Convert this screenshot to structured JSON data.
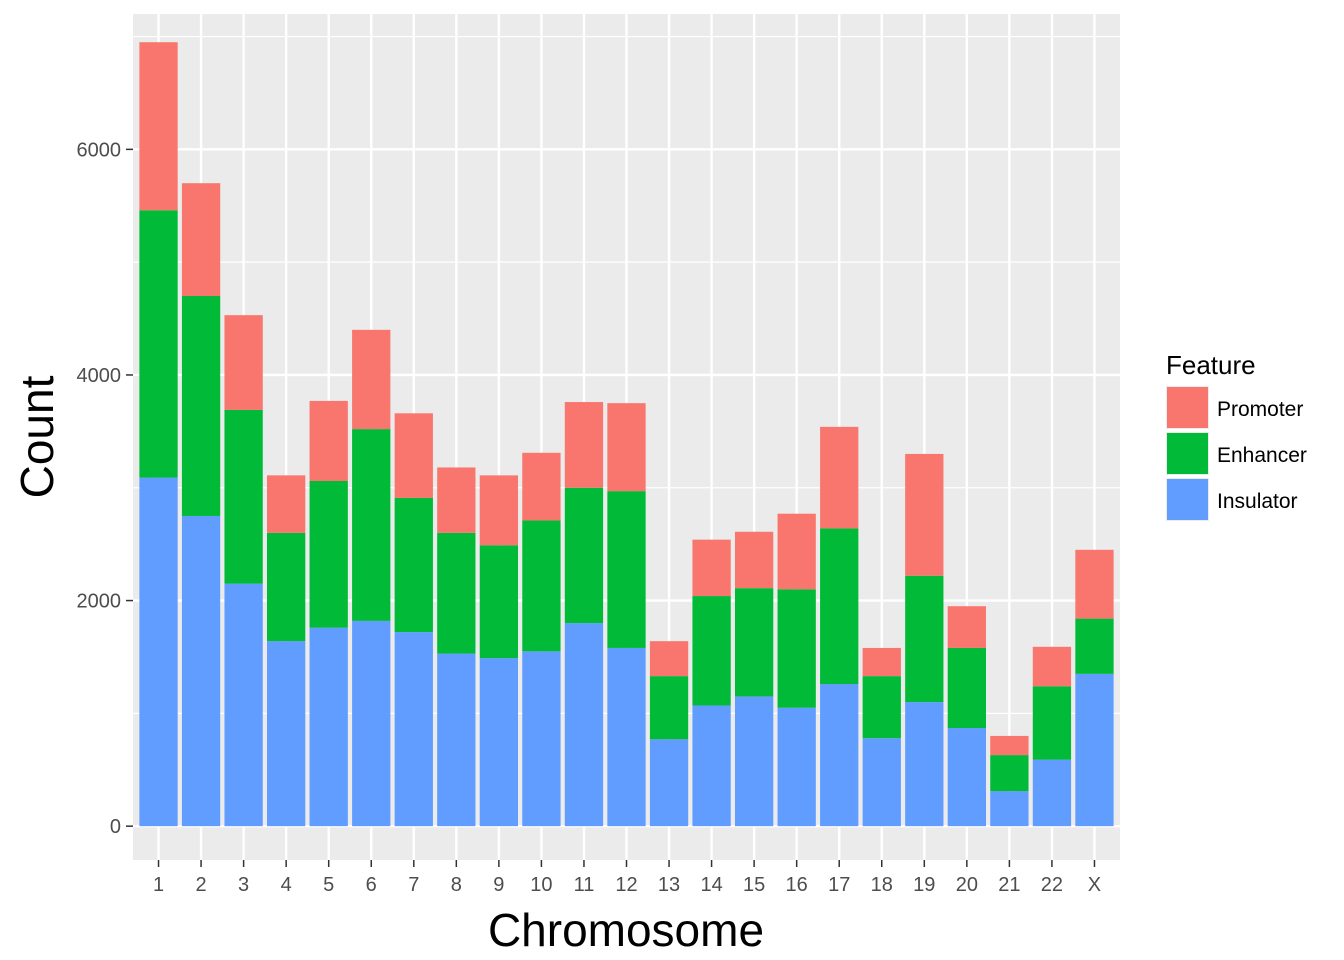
{
  "chart_data": {
    "type": "bar",
    "stacked": true,
    "title": "",
    "xlabel": "Chromosome",
    "ylabel": "Count",
    "ylim": [
      -300,
      7200
    ],
    "yticks": [
      0,
      2000,
      4000,
      6000
    ],
    "categories": [
      "1",
      "2",
      "3",
      "4",
      "5",
      "6",
      "7",
      "8",
      "9",
      "10",
      "11",
      "12",
      "13",
      "14",
      "15",
      "16",
      "17",
      "18",
      "19",
      "20",
      "21",
      "22",
      "X"
    ],
    "series": [
      {
        "name": "Insulator",
        "color": "#619CFF",
        "values": [
          3090,
          2750,
          2150,
          1640,
          1760,
          1820,
          1720,
          1530,
          1490,
          1550,
          1800,
          1580,
          770,
          1070,
          1150,
          1050,
          1260,
          780,
          1100,
          870,
          310,
          590,
          1350
        ]
      },
      {
        "name": "Enhancer",
        "color": "#00BA38",
        "values": [
          2370,
          1950,
          1540,
          960,
          1300,
          1700,
          1190,
          1070,
          1000,
          1160,
          1200,
          1390,
          560,
          970,
          960,
          1050,
          1380,
          550,
          1120,
          710,
          320,
          650,
          490
        ]
      },
      {
        "name": "Promoter",
        "color": "#F8766D",
        "values": [
          1490,
          1000,
          840,
          510,
          710,
          880,
          750,
          580,
          620,
          600,
          760,
          780,
          310,
          500,
          500,
          670,
          900,
          250,
          1080,
          370,
          170,
          350,
          610
        ]
      }
    ],
    "legend": {
      "title": "Feature",
      "placement": "right",
      "order": [
        "Promoter",
        "Enhancer",
        "Insulator"
      ]
    },
    "grid": true,
    "panel_background": "#EBEBEB",
    "grid_color": "#FFFFFF"
  }
}
